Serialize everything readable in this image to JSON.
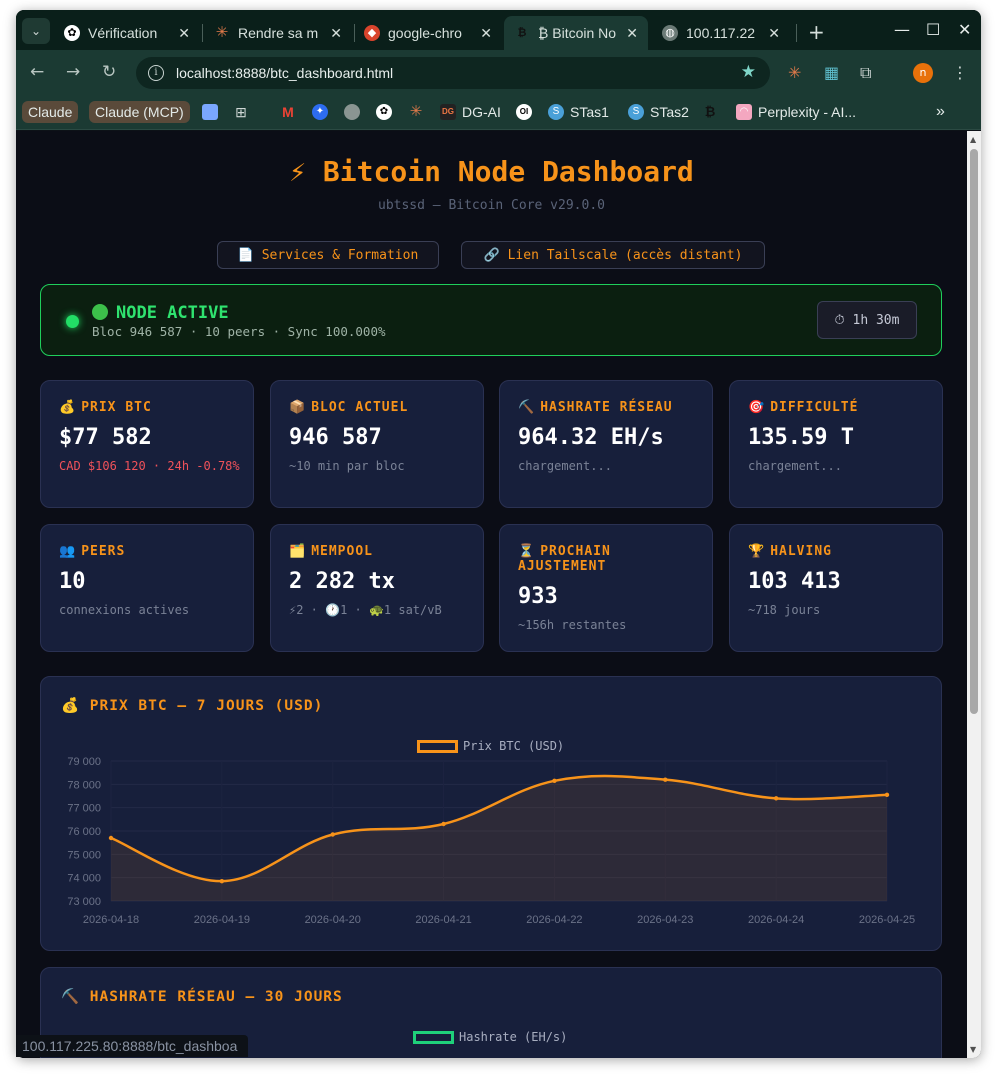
{
  "browser": {
    "tabs": [
      {
        "title": "Vérification",
        "icon": "openai-icon"
      },
      {
        "title": "Rendre sa m",
        "icon": "claude-icon"
      },
      {
        "title": "google-chro",
        "icon": "brave-icon"
      },
      {
        "title": "₿ Bitcoin No",
        "icon": "bitcoin-icon"
      },
      {
        "title": "100.117.22",
        "icon": "globe-icon"
      }
    ],
    "url_host": "localhost",
    "url_rest": ":8888/btc_dashboard.html",
    "profile_initial": "n",
    "bookmarks": [
      {
        "label": "Claude",
        "style": "pill"
      },
      {
        "label": "Claude (MCP)",
        "style": "pill"
      },
      {
        "label": "DG-AI"
      },
      {
        "label": "STas1"
      },
      {
        "label": "STas2"
      },
      {
        "label": "Perplexity - AI..."
      }
    ],
    "status_url": "100.117.225.80:8888/btc_dashboa"
  },
  "dashboard": {
    "title": "⚡ Bitcoin Node Dashboard",
    "subtitle": "ubtssd — Bitcoin Core v29.0.0",
    "links": {
      "services": "📄 Services & Formation",
      "tailscale": "🔗 Lien Tailscale (accès distant)"
    },
    "node": {
      "state": "NODE ACTIVE",
      "detail": "Bloc 946 587 · 10 peers · Sync 100.000%",
      "uptime": "⏱ 1h 30m"
    },
    "cards": [
      {
        "icon": "💰",
        "label": "PRIX BTC",
        "value": "$77 582",
        "note": "CAD $106 120 · 24h -0.78%",
        "note_color": "#f0525a"
      },
      {
        "icon": "📦",
        "label": "BLOC ACTUEL",
        "value": "946 587",
        "note": "~10 min par bloc"
      },
      {
        "icon": "⛏️",
        "label": "HASHRATE RÉSEAU",
        "value": "964.32 EH/s",
        "note": "chargement..."
      },
      {
        "icon": "🎯",
        "label": "DIFFICULTÉ",
        "value": "135.59 T",
        "note": "chargement..."
      },
      {
        "icon": "👥",
        "label": "PEERS",
        "value": "10",
        "note": "connexions actives"
      },
      {
        "icon": "🗂️",
        "label": "MEMPOOL",
        "value": "2 282 tx",
        "note": "⚡2 · 🕐1 · 🐢1 sat/vB"
      },
      {
        "icon": "⏳",
        "label": "PROCHAIN AJUSTEMENT",
        "value": "933",
        "note": "~156h restantes"
      },
      {
        "icon": "🏆",
        "label": "HALVING",
        "value": "103 413",
        "note": "~718 jours"
      }
    ],
    "price_panel_title": "💰 PRIX BTC — 7 JOURS (USD)",
    "hashrate_panel_title": "⛏️ HASHRATE RÉSEAU — 30 JOURS",
    "hashrate_legend": "Hashrate (EH/s)",
    "accent_color": "#f7931a",
    "ok_color": "#22dd66"
  },
  "chart_data": {
    "type": "line",
    "x": [
      "2026-04-18",
      "2026-04-19",
      "2026-04-20",
      "2026-04-21",
      "2026-04-22",
      "2026-04-23",
      "2026-04-24",
      "2026-04-25"
    ],
    "series": [
      {
        "name": "Prix BTC (USD)",
        "values": [
          75700,
          73850,
          75850,
          76300,
          78150,
          78200,
          77400,
          77550
        ],
        "color": "#f7931a"
      }
    ],
    "yticks": [
      "79 000",
      "78 000",
      "77 000",
      "76 000",
      "75 000",
      "74 000",
      "73 000"
    ],
    "ylim": [
      73000,
      79000
    ],
    "grid": true,
    "legend": "top-center"
  }
}
